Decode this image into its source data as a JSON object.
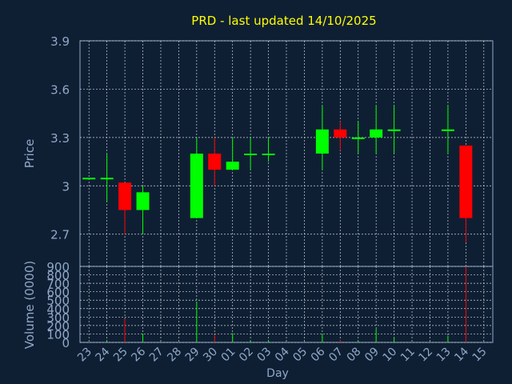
{
  "chart_data": [
    {
      "type": "candlestick",
      "title": "PRD - last updated 14/10/2025",
      "ylabel": "Price",
      "xlabel": "",
      "ylim": [
        2.5,
        3.9
      ],
      "yticks": [
        "2.7",
        "3",
        "3.3",
        "3.6",
        "3.9"
      ],
      "grid": true,
      "colors": {
        "up": "#00ff00",
        "down": "#ff0000",
        "title": "#ffff00",
        "axis_text": "#8fa8c8",
        "grid": "#c8d2dc",
        "background": "#0f1f33"
      },
      "categories": [
        "23",
        "24",
        "25",
        "26",
        "27",
        "28",
        "29",
        "30",
        "01",
        "02",
        "03",
        "04",
        "05",
        "06",
        "07",
        "08",
        "09",
        "10",
        "11",
        "12",
        "13",
        "14",
        "15"
      ],
      "series": [
        {
          "x": "23",
          "open": 3.05,
          "high": 3.05,
          "low": 3.05,
          "close": 3.05
        },
        {
          "x": "24",
          "open": 3.05,
          "high": 3.2,
          "low": 2.9,
          "close": 3.05
        },
        {
          "x": "25",
          "open": 3.02,
          "high": 3.02,
          "low": 2.7,
          "close": 2.85
        },
        {
          "x": "26",
          "open": 2.85,
          "high": 3.0,
          "low": 2.7,
          "close": 2.96
        },
        {
          "x": "29",
          "open": 2.8,
          "high": 3.3,
          "low": 2.8,
          "close": 3.2
        },
        {
          "x": "30",
          "open": 3.2,
          "high": 3.3,
          "low": 3.0,
          "close": 3.1
        },
        {
          "x": "01",
          "open": 3.1,
          "high": 3.3,
          "low": 3.1,
          "close": 3.15
        },
        {
          "x": "02",
          "open": 3.19,
          "high": 3.3,
          "low": 3.1,
          "close": 3.2
        },
        {
          "x": "03",
          "open": 3.19,
          "high": 3.3,
          "low": 3.15,
          "close": 3.2
        },
        {
          "x": "06",
          "open": 3.2,
          "high": 3.5,
          "low": 3.1,
          "close": 3.35
        },
        {
          "x": "07",
          "open": 3.35,
          "high": 3.4,
          "low": 3.22,
          "close": 3.3
        },
        {
          "x": "08",
          "open": 3.29,
          "high": 3.4,
          "low": 3.2,
          "close": 3.3
        },
        {
          "x": "09",
          "open": 3.3,
          "high": 3.5,
          "low": 3.2,
          "close": 3.35
        },
        {
          "x": "10",
          "open": 3.34,
          "high": 3.5,
          "low": 3.2,
          "close": 3.35
        },
        {
          "x": "13",
          "open": 3.34,
          "high": 3.5,
          "low": 3.2,
          "close": 3.35
        },
        {
          "x": "14",
          "open": 3.25,
          "high": 3.25,
          "low": 2.65,
          "close": 2.8
        }
      ]
    },
    {
      "type": "bar",
      "ylabel": "Volume (0000)",
      "xlabel": "Day",
      "ylim": [
        0,
        900
      ],
      "yticks": [
        "0",
        "100",
        "200",
        "300",
        "400",
        "500",
        "600",
        "700",
        "800",
        "900"
      ],
      "grid": true,
      "categories": [
        "23",
        "24",
        "25",
        "26",
        "27",
        "28",
        "29",
        "30",
        "01",
        "02",
        "03",
        "04",
        "05",
        "06",
        "07",
        "08",
        "09",
        "10",
        "11",
        "12",
        "13",
        "14",
        "15"
      ],
      "series": [
        {
          "x": "24",
          "value": 20,
          "color": "#00ff00"
        },
        {
          "x": "25",
          "value": 280,
          "color": "#ff0000"
        },
        {
          "x": "26",
          "value": 100,
          "color": "#00ff00"
        },
        {
          "x": "29",
          "value": 480,
          "color": "#00ff00"
        },
        {
          "x": "30",
          "value": 90,
          "color": "#ff0000"
        },
        {
          "x": "01",
          "value": 110,
          "color": "#00ff00"
        },
        {
          "x": "02",
          "value": 25,
          "color": "#00ff00"
        },
        {
          "x": "03",
          "value": 30,
          "color": "#00ff00"
        },
        {
          "x": "06",
          "value": 100,
          "color": "#00ff00"
        },
        {
          "x": "07",
          "value": 30,
          "color": "#ff0000"
        },
        {
          "x": "08",
          "value": 20,
          "color": "#00ff00"
        },
        {
          "x": "09",
          "value": 160,
          "color": "#00ff00"
        },
        {
          "x": "10",
          "value": 60,
          "color": "#00ff00"
        },
        {
          "x": "13",
          "value": 80,
          "color": "#00ff00"
        },
        {
          "x": "14",
          "value": 900,
          "color": "#ff0000"
        }
      ]
    }
  ]
}
